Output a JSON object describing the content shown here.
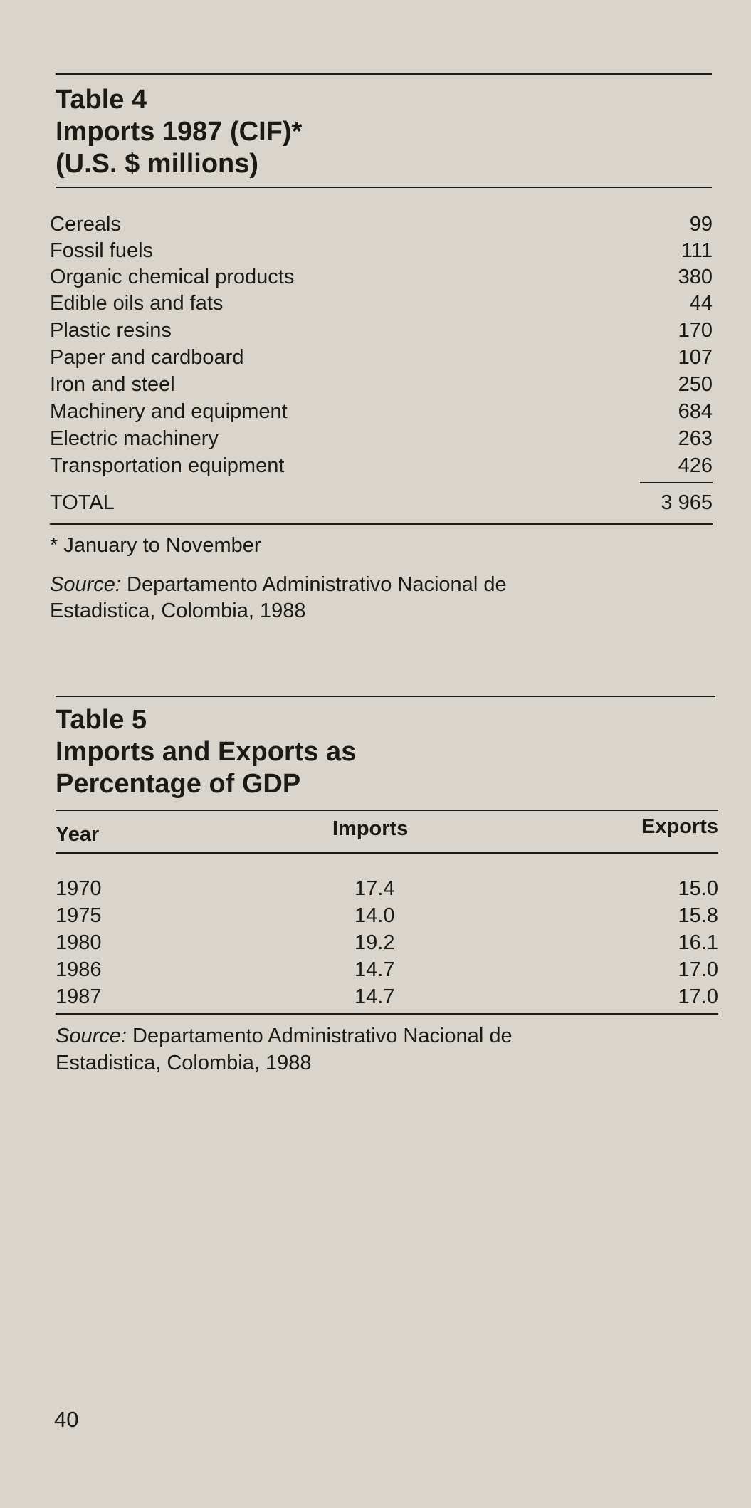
{
  "table4": {
    "title_lines": [
      "Table 4",
      "Imports 1987 (CIF)*",
      "(U.S. $ millions)"
    ],
    "rows": [
      {
        "label": "Cereals",
        "value": "99"
      },
      {
        "label": "Fossil fuels",
        "value": "111"
      },
      {
        "label": "Organic chemical products",
        "value": "380"
      },
      {
        "label": "Edible oils and fats",
        "value": "44"
      },
      {
        "label": "Plastic resins",
        "value": "170"
      },
      {
        "label": "Paper and cardboard",
        "value": "107"
      },
      {
        "label": "Iron and steel",
        "value": "250"
      },
      {
        "label": "Machinery and equipment",
        "value": "684"
      },
      {
        "label": "Electric machinery",
        "value": "263"
      },
      {
        "label": "Transportation equipment",
        "value": "426"
      }
    ],
    "total_label": "TOTAL",
    "total_value": "3 965",
    "footnote": "* January to November",
    "source_label": "Source:",
    "source_line1": "Departamento Administrativo Nacional de",
    "source_line2": "Estadistica, Colombia, 1988"
  },
  "table5": {
    "title_lines": [
      "Table 5",
      "Imports and Exports as",
      "Percentage of GDP"
    ],
    "headers": {
      "year": "Year",
      "imports": "Imports",
      "exports": "Exports"
    },
    "rows": [
      {
        "year": "1970",
        "imports": "17.4",
        "exports": "15.0"
      },
      {
        "year": "1975",
        "imports": "14.0",
        "exports": "15.8"
      },
      {
        "year": "1980",
        "imports": "19.2",
        "exports": "16.1"
      },
      {
        "year": "1986",
        "imports": "14.7",
        "exports": "17.0"
      },
      {
        "year": "1987",
        "imports": "14.7",
        "exports": "17.0"
      }
    ],
    "source_label": "Source:",
    "source_line1": "Departamento Administrativo Nacional de",
    "source_line2": "Estadistica, Colombia, 1988"
  },
  "page_number": "40"
}
